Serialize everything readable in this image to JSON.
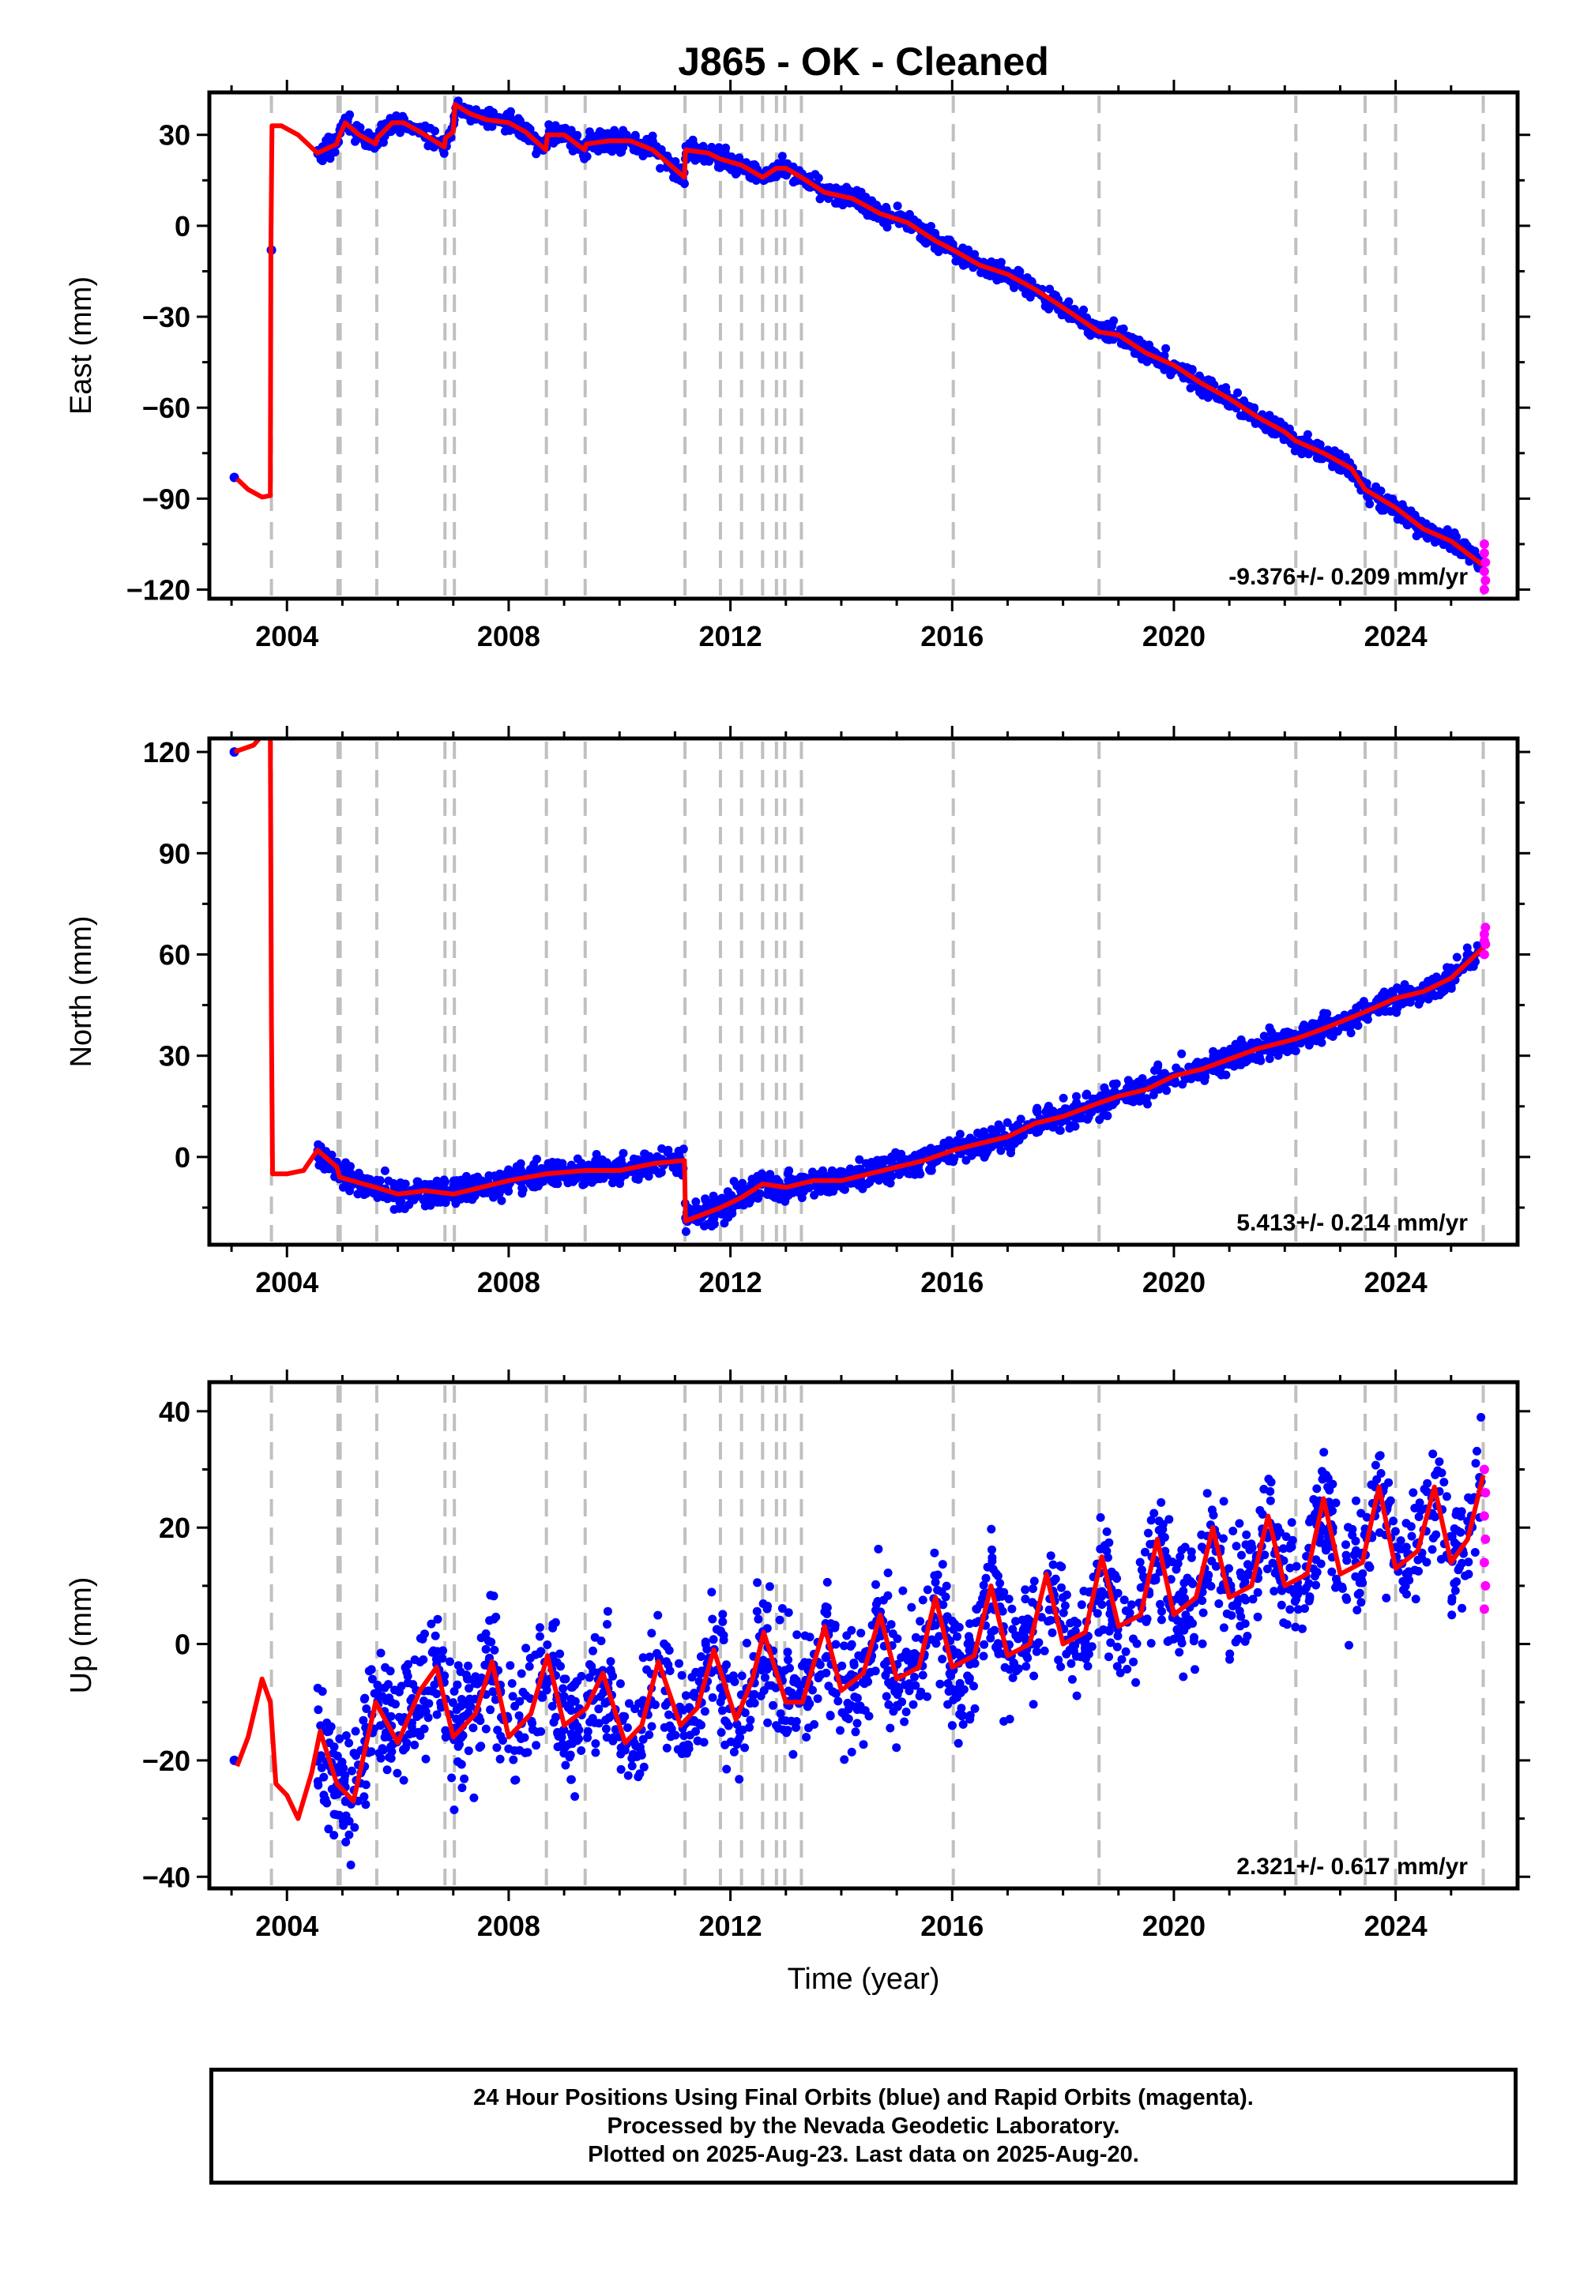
{
  "title": "J865  - OK - Cleaned",
  "xlabel": "Time (year)",
  "footer": {
    "line1": "24 Hour Positions Using Final Orbits (blue) and Rapid Orbits (magenta).",
    "line2": "Processed by the Nevada Geodetic Laboratory.",
    "line3": "Plotted on 2025-Aug-23. Last data on 2025-Aug-20."
  },
  "colors": {
    "final_orbits": "#0000ff",
    "rapid_orbits": "#ff00ff",
    "model": "#ff0000",
    "event_lines": "#c0c0c0",
    "frame": "#000000"
  },
  "chart_data": [
    {
      "type": "scatter",
      "panel": "east",
      "ylabel": "East (mm)",
      "rate_label": "-9.376+/- 0.209 mm/yr",
      "xlim": [
        2002.6,
        2026.2
      ],
      "ylim": [
        -123,
        44
      ],
      "xticks": [
        2004,
        2008,
        2012,
        2016,
        2020,
        2024
      ],
      "yticks": [
        -120,
        -90,
        -60,
        -30,
        0,
        30
      ],
      "event_lines": [
        2003.72,
        2004.92,
        2004.96,
        2005.62,
        2006.85,
        2007.02,
        2008.68,
        2009.38,
        2011.18,
        2011.82,
        2012.2,
        2012.58,
        2012.83,
        2012.98,
        2013.28,
        2016.02,
        2018.65,
        2022.2,
        2023.45,
        2024.0,
        2025.58
      ],
      "model_curve": [
        [
          2003.1,
          -83.5
        ],
        [
          2003.3,
          -87
        ],
        [
          2003.55,
          -89.5
        ],
        [
          2003.7,
          -89
        ],
        [
          2003.71,
          -8
        ],
        [
          2003.73,
          33
        ],
        [
          2003.9,
          33
        ],
        [
          2004.2,
          30
        ],
        [
          2004.55,
          24
        ],
        [
          2004.9,
          27
        ],
        [
          2004.93,
          29
        ],
        [
          2005.05,
          34
        ],
        [
          2005.3,
          30
        ],
        [
          2005.6,
          27
        ],
        [
          2005.63,
          29
        ],
        [
          2005.9,
          34
        ],
        [
          2006.1,
          34
        ],
        [
          2006.4,
          31
        ],
        [
          2006.84,
          26
        ],
        [
          2006.86,
          29
        ],
        [
          2007.0,
          31
        ],
        [
          2007.03,
          40
        ],
        [
          2007.3,
          37
        ],
        [
          2007.6,
          35
        ],
        [
          2008.0,
          34
        ],
        [
          2008.3,
          31
        ],
        [
          2008.67,
          25
        ],
        [
          2008.7,
          30
        ],
        [
          2009.0,
          30
        ],
        [
          2009.37,
          25
        ],
        [
          2009.4,
          27
        ],
        [
          2009.8,
          28
        ],
        [
          2010.2,
          28
        ],
        [
          2010.6,
          25
        ],
        [
          2011.17,
          16
        ],
        [
          2011.19,
          25
        ],
        [
          2011.6,
          24
        ],
        [
          2011.82,
          22
        ],
        [
          2012.2,
          20
        ],
        [
          2012.58,
          16
        ],
        [
          2012.83,
          19
        ],
        [
          2013.0,
          19
        ],
        [
          2013.28,
          16
        ],
        [
          2013.7,
          11
        ],
        [
          2014.2,
          9
        ],
        [
          2014.7,
          4
        ],
        [
          2015.2,
          1
        ],
        [
          2015.7,
          -5
        ],
        [
          2016.02,
          -8
        ],
        [
          2016.5,
          -13
        ],
        [
          2017.0,
          -16
        ],
        [
          2017.5,
          -21
        ],
        [
          2018.0,
          -27
        ],
        [
          2018.65,
          -35
        ],
        [
          2019.0,
          -36
        ],
        [
          2019.5,
          -42
        ],
        [
          2020.0,
          -46
        ],
        [
          2020.5,
          -52
        ],
        [
          2021.0,
          -57
        ],
        [
          2021.5,
          -63
        ],
        [
          2022.0,
          -68
        ],
        [
          2022.2,
          -71
        ],
        [
          2022.7,
          -75
        ],
        [
          2023.2,
          -80
        ],
        [
          2023.45,
          -87
        ],
        [
          2024.0,
          -93
        ],
        [
          2024.5,
          -100
        ],
        [
          2025.0,
          -104
        ],
        [
          2025.58,
          -112
        ]
      ],
      "scatter_segments": [
        {
          "x_start": 2004.55,
          "x_end": 2025.55,
          "spread": 1.6
        }
      ],
      "isolated_points": [
        [
          2003.05,
          -83
        ],
        [
          2003.72,
          -8
        ]
      ],
      "rapid_points": [
        [
          2025.6,
          -105
        ],
        [
          2025.6,
          -108
        ],
        [
          2025.62,
          -111
        ],
        [
          2025.6,
          -114
        ],
        [
          2025.62,
          -117
        ],
        [
          2025.6,
          -120
        ]
      ]
    },
    {
      "type": "scatter",
      "panel": "north",
      "ylabel": "North (mm)",
      "rate_label": "5.413+/- 0.214 mm/yr",
      "xlim": [
        2002.6,
        2026.2
      ],
      "ylim": [
        -26,
        124
      ],
      "xticks": [
        2004,
        2008,
        2012,
        2016,
        2020,
        2024
      ],
      "yticks": [
        0,
        30,
        60,
        90,
        120
      ],
      "event_lines": [
        2003.72,
        2004.92,
        2004.96,
        2005.62,
        2006.85,
        2007.02,
        2008.68,
        2009.38,
        2011.18,
        2011.82,
        2012.2,
        2012.58,
        2012.83,
        2012.98,
        2013.28,
        2016.02,
        2018.65,
        2022.2,
        2023.45,
        2024.0,
        2025.58
      ],
      "model_curve": [
        [
          2003.05,
          120
        ],
        [
          2003.4,
          122
        ],
        [
          2003.55,
          125
        ],
        [
          2003.7,
          125
        ],
        [
          2003.72,
          40
        ],
        [
          2003.74,
          -5
        ],
        [
          2004.0,
          -5
        ],
        [
          2004.3,
          -4
        ],
        [
          2004.55,
          2
        ],
        [
          2004.9,
          -3
        ],
        [
          2004.95,
          -6
        ],
        [
          2005.6,
          -9
        ],
        [
          2006.0,
          -11
        ],
        [
          2006.5,
          -10
        ],
        [
          2007.0,
          -11
        ],
        [
          2007.5,
          -9
        ],
        [
          2008.0,
          -7
        ],
        [
          2008.68,
          -5
        ],
        [
          2009.38,
          -4
        ],
        [
          2010.0,
          -4
        ],
        [
          2010.6,
          -2
        ],
        [
          2011.17,
          -1
        ],
        [
          2011.19,
          -19
        ],
        [
          2011.82,
          -15
        ],
        [
          2012.2,
          -12
        ],
        [
          2012.58,
          -8
        ],
        [
          2013.0,
          -9
        ],
        [
          2013.5,
          -7
        ],
        [
          2014.0,
          -7
        ],
        [
          2014.5,
          -5
        ],
        [
          2015.0,
          -3
        ],
        [
          2015.5,
          -1
        ],
        [
          2016.02,
          2
        ],
        [
          2016.5,
          4
        ],
        [
          2017.0,
          6
        ],
        [
          2017.5,
          10
        ],
        [
          2018.0,
          12
        ],
        [
          2018.65,
          16
        ],
        [
          2019.0,
          18
        ],
        [
          2019.5,
          20
        ],
        [
          2020.0,
          24
        ],
        [
          2020.5,
          26
        ],
        [
          2021.0,
          29
        ],
        [
          2021.5,
          32
        ],
        [
          2022.2,
          35
        ],
        [
          2022.7,
          38
        ],
        [
          2023.45,
          43
        ],
        [
          2024.0,
          47
        ],
        [
          2024.5,
          49
        ],
        [
          2025.0,
          53
        ],
        [
          2025.58,
          62
        ]
      ],
      "scatter_segments": [
        {
          "x_start": 2004.55,
          "x_end": 2025.55,
          "spread": 2.0
        }
      ],
      "isolated_points": [
        [
          2003.05,
          120
        ]
      ],
      "rapid_points": [
        [
          2025.6,
          60
        ],
        [
          2025.62,
          63
        ],
        [
          2025.6,
          66
        ],
        [
          2025.62,
          68
        ],
        [
          2025.6,
          64
        ]
      ]
    },
    {
      "type": "scatter",
      "panel": "up",
      "ylabel": "Up (mm)",
      "rate_label": "2.321+/- 0.617 mm/yr",
      "xlim": [
        2002.6,
        2026.2
      ],
      "ylim": [
        -42,
        45
      ],
      "xticks": [
        2004,
        2008,
        2012,
        2016,
        2020,
        2024
      ],
      "yticks": [
        -40,
        -20,
        0,
        20,
        40
      ],
      "event_lines": [
        2003.72,
        2004.92,
        2004.96,
        2005.62,
        2006.85,
        2007.02,
        2008.68,
        2009.38,
        2011.18,
        2011.82,
        2012.2,
        2012.58,
        2012.83,
        2012.98,
        2013.28,
        2016.02,
        2018.65,
        2022.2,
        2023.45,
        2024.0,
        2025.58
      ],
      "model_curve": [
        [
          2003.1,
          -21
        ],
        [
          2003.3,
          -16
        ],
        [
          2003.55,
          -6
        ],
        [
          2003.7,
          -10
        ],
        [
          2003.8,
          -24
        ],
        [
          2004.0,
          -26
        ],
        [
          2004.2,
          -30
        ],
        [
          2004.45,
          -22
        ],
        [
          2004.6,
          -15
        ],
        [
          2004.9,
          -24
        ],
        [
          2005.2,
          -27
        ],
        [
          2005.6,
          -10
        ],
        [
          2006.0,
          -17
        ],
        [
          2006.4,
          -8
        ],
        [
          2006.7,
          -4
        ],
        [
          2007.0,
          -16
        ],
        [
          2007.4,
          -12
        ],
        [
          2007.7,
          -3
        ],
        [
          2008.0,
          -16
        ],
        [
          2008.4,
          -12
        ],
        [
          2008.7,
          -2
        ],
        [
          2009.0,
          -14
        ],
        [
          2009.4,
          -11
        ],
        [
          2009.7,
          -5
        ],
        [
          2010.1,
          -17
        ],
        [
          2010.4,
          -14
        ],
        [
          2010.7,
          -3
        ],
        [
          2011.1,
          -14
        ],
        [
          2011.4,
          -11
        ],
        [
          2011.7,
          -1
        ],
        [
          2012.1,
          -13
        ],
        [
          2012.4,
          -6
        ],
        [
          2012.6,
          2
        ],
        [
          2013.0,
          -10
        ],
        [
          2013.3,
          -10
        ],
        [
          2013.7,
          3
        ],
        [
          2014.0,
          -8
        ],
        [
          2014.4,
          -5
        ],
        [
          2014.7,
          5
        ],
        [
          2015.0,
          -6
        ],
        [
          2015.4,
          -4
        ],
        [
          2015.7,
          8
        ],
        [
          2016.0,
          -4
        ],
        [
          2016.4,
          -2
        ],
        [
          2016.7,
          10
        ],
        [
          2017.0,
          -2
        ],
        [
          2017.4,
          0
        ],
        [
          2017.7,
          12
        ],
        [
          2018.0,
          0
        ],
        [
          2018.4,
          2
        ],
        [
          2018.7,
          15
        ],
        [
          2019.0,
          3
        ],
        [
          2019.4,
          5
        ],
        [
          2019.7,
          18
        ],
        [
          2020.0,
          5
        ],
        [
          2020.4,
          8
        ],
        [
          2020.7,
          20
        ],
        [
          2021.0,
          8
        ],
        [
          2021.4,
          10
        ],
        [
          2021.7,
          22
        ],
        [
          2022.0,
          10
        ],
        [
          2022.4,
          12
        ],
        [
          2022.7,
          25
        ],
        [
          2023.0,
          12
        ],
        [
          2023.4,
          14
        ],
        [
          2023.7,
          27
        ],
        [
          2024.0,
          13
        ],
        [
          2024.4,
          16
        ],
        [
          2024.7,
          27
        ],
        [
          2025.0,
          14
        ],
        [
          2025.3,
          18
        ],
        [
          2025.58,
          29
        ]
      ],
      "scatter_segments": [
        {
          "x_start": 2004.55,
          "x_end": 2025.55,
          "spread": 5.5
        }
      ],
      "isolated_points": [
        [
          2003.05,
          -20
        ]
      ],
      "rapid_points": [
        [
          2025.6,
          30
        ],
        [
          2025.62,
          26
        ],
        [
          2025.6,
          22
        ],
        [
          2025.62,
          18
        ],
        [
          2025.6,
          14
        ],
        [
          2025.62,
          10
        ],
        [
          2025.6,
          6
        ]
      ]
    }
  ]
}
